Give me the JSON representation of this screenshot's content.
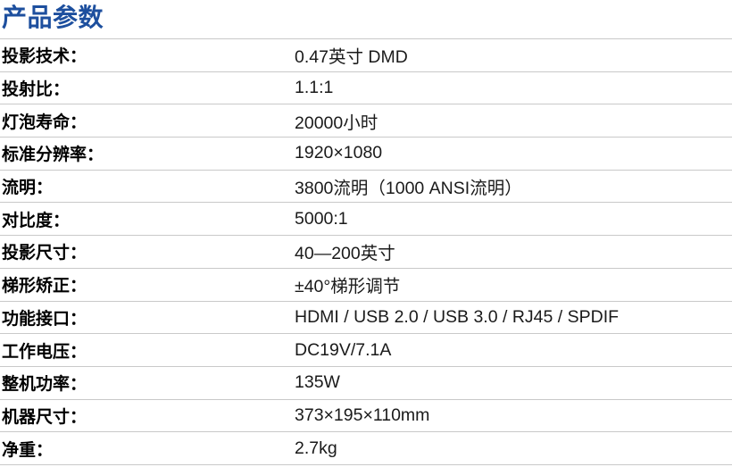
{
  "page": {
    "title": "产品参数"
  },
  "colors": {
    "title_blue": "#1d4f9e",
    "divider_gray": "#c9c9c9",
    "label_text": "#000000",
    "value_text": "#1a1a1a",
    "background": "#ffffff"
  },
  "spec_table": {
    "rows": [
      {
        "label": "投影技术：",
        "value": "0.47英寸 DMD"
      },
      {
        "label": "投射比：",
        "value": "1.1:1"
      },
      {
        "label": "灯泡寿命：",
        "value": "20000小时"
      },
      {
        "label": "标准分辨率：",
        "value": "1920×1080"
      },
      {
        "label": "流明：",
        "value": "3800流明（1000 ANSI流明）"
      },
      {
        "label": "对比度：",
        "value": "5000:1"
      },
      {
        "label": "投影尺寸：",
        "value": "40—200英寸"
      },
      {
        "label": "梯形矫正：",
        "value": "±40°梯形调节"
      },
      {
        "label": "功能接口：",
        "value": "HDMI / USB 2.0 / USB 3.0 / RJ45 / SPDIF"
      },
      {
        "label": "工作电压：",
        "value": "DC19V/7.1A"
      },
      {
        "label": "整机功率：",
        "value": "135W"
      },
      {
        "label": "机器尺寸：",
        "value": "373×195×110mm"
      },
      {
        "label": "净重：",
        "value": "2.7kg"
      }
    ]
  }
}
